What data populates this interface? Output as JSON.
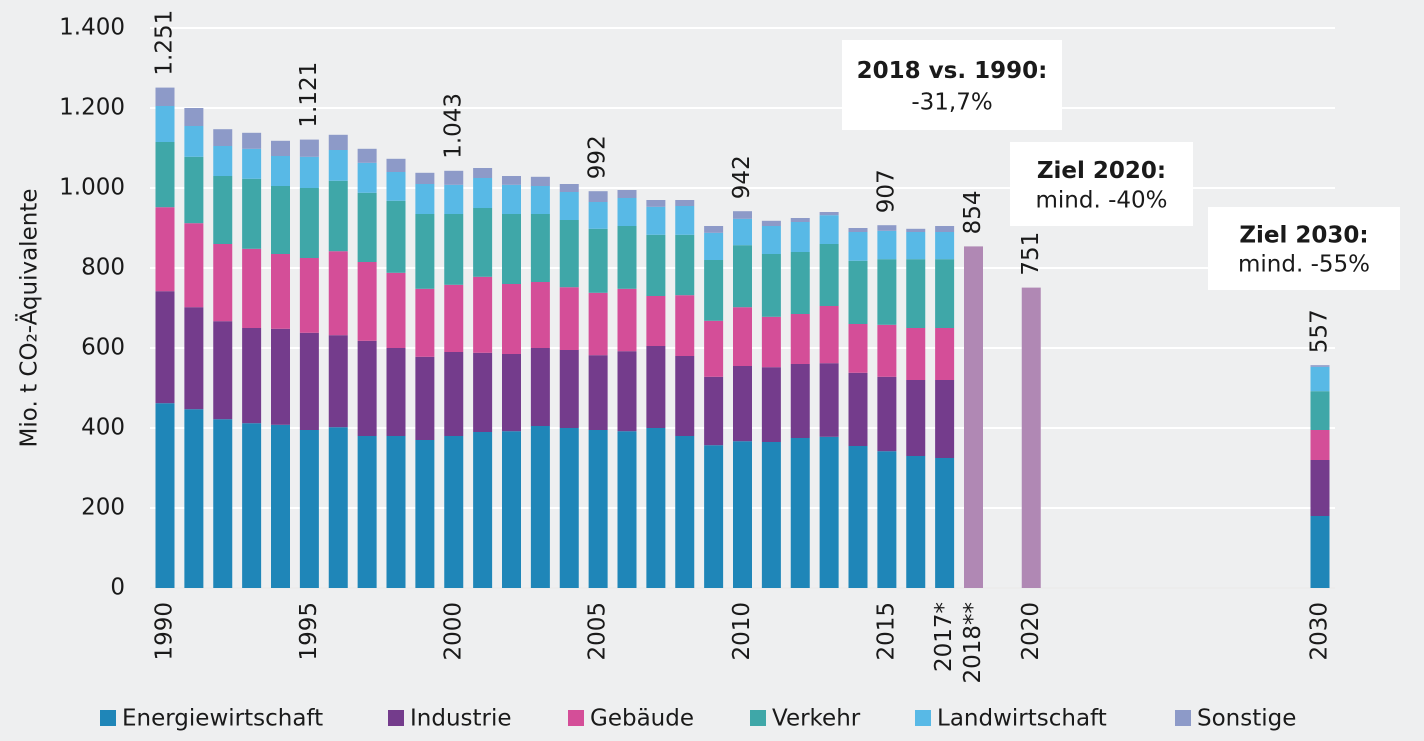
{
  "chart_data": {
    "type": "stacked_bar",
    "ylabel": "Mio. t CO₂-Äquivalente",
    "categories": [
      "1990",
      null,
      null,
      null,
      null,
      "1995",
      null,
      null,
      null,
      null,
      "2000",
      null,
      null,
      null,
      null,
      "2005",
      null,
      null,
      null,
      null,
      "2010",
      null,
      null,
      null,
      null,
      "2015",
      null,
      "2017*",
      "2018**",
      null,
      "2020",
      null,
      null,
      null,
      null,
      null,
      null,
      null,
      null,
      null,
      "2030"
    ],
    "series": [
      {
        "name": "Energiewirtschaft",
        "color": "#1f86b8",
        "values": [
          462,
          447,
          422,
          412,
          408,
          395,
          402,
          380,
          380,
          370,
          380,
          390,
          392,
          405,
          400,
          395,
          392,
          400,
          380,
          357,
          367,
          365,
          375,
          378,
          355,
          342,
          330,
          325,
          null,
          null,
          null,
          null,
          null,
          null,
          null,
          null,
          null,
          null,
          null,
          null,
          180
        ]
      },
      {
        "name": "Industrie",
        "color": "#743c8c",
        "values": [
          280,
          255,
          245,
          238,
          240,
          243,
          230,
          238,
          220,
          208,
          210,
          198,
          193,
          195,
          195,
          187,
          200,
          205,
          200,
          171,
          188,
          187,
          185,
          184,
          183,
          186,
          190,
          195,
          null,
          null,
          null,
          null,
          null,
          null,
          null,
          null,
          null,
          null,
          null,
          null,
          140
        ]
      },
      {
        "name": "Gebäude",
        "color": "#d44e98",
        "values": [
          210,
          210,
          193,
          198,
          187,
          187,
          210,
          197,
          188,
          170,
          168,
          190,
          175,
          165,
          157,
          156,
          156,
          125,
          152,
          140,
          147,
          126,
          125,
          143,
          122,
          130,
          130,
          130,
          null,
          null,
          null,
          null,
          null,
          null,
          null,
          null,
          null,
          null,
          null,
          null,
          75
        ]
      },
      {
        "name": "Verkehr",
        "color": "#3fa7a8",
        "values": [
          163,
          166,
          170,
          175,
          170,
          175,
          176,
          173,
          180,
          187,
          177,
          172,
          175,
          170,
          168,
          160,
          157,
          153,
          151,
          152,
          155,
          157,
          155,
          155,
          158,
          164,
          172,
          172,
          null,
          null,
          null,
          null,
          null,
          null,
          null,
          null,
          null,
          null,
          null,
          null,
          97
        ]
      },
      {
        "name": "Landwirtschaft",
        "color": "#58b9e6",
        "values": [
          90,
          77,
          75,
          75,
          75,
          78,
          77,
          75,
          72,
          75,
          73,
          75,
          73,
          70,
          70,
          67,
          70,
          70,
          72,
          68,
          66,
          70,
          75,
          72,
          72,
          71,
          68,
          68,
          null,
          null,
          null,
          null,
          null,
          null,
          null,
          null,
          null,
          null,
          null,
          null,
          61
        ]
      },
      {
        "name": "Sonstige",
        "color": "#8d9ac8",
        "values": [
          46,
          45,
          42,
          40,
          38,
          43,
          38,
          35,
          33,
          28,
          35,
          25,
          22,
          23,
          20,
          27,
          20,
          17,
          15,
          17,
          19,
          13,
          10,
          8,
          10,
          14,
          8,
          15,
          null,
          null,
          null,
          null,
          null,
          null,
          null,
          null,
          null,
          null,
          null,
          null,
          4
        ]
      },
      {
        "color": "#b088b4",
        "values": [
          null,
          null,
          null,
          null,
          null,
          null,
          null,
          null,
          null,
          null,
          null,
          null,
          null,
          null,
          null,
          null,
          null,
          null,
          null,
          null,
          null,
          null,
          null,
          null,
          null,
          null,
          null,
          null,
          854,
          null,
          751,
          null,
          null,
          null,
          null,
          null,
          null,
          null,
          null,
          null,
          null
        ]
      }
    ],
    "totals": {
      "values": [
        1251,
        null,
        null,
        null,
        null,
        1121,
        null,
        null,
        null,
        null,
        1043,
        null,
        null,
        null,
        null,
        992,
        null,
        null,
        null,
        null,
        942,
        null,
        null,
        null,
        null,
        907,
        null,
        null,
        854,
        null,
        751,
        null,
        null,
        null,
        null,
        null,
        null,
        null,
        null,
        null,
        557
      ],
      "value_labels": [
        "1.251",
        null,
        null,
        null,
        null,
        "1.121",
        null,
        null,
        null,
        null,
        "1.043",
        null,
        null,
        null,
        null,
        null,
        null,
        null,
        null,
        null,
        null,
        null,
        null,
        null,
        null,
        null,
        null,
        null,
        null,
        null,
        null,
        null,
        null,
        null,
        null,
        null,
        null,
        null,
        null,
        null,
        null
      ]
    },
    "ylim": [
      0,
      1400
    ],
    "yticks": [
      0,
      200,
      400,
      600,
      800,
      {
        "value": 1000,
        "label": "1.000"
      },
      {
        "value": 1200,
        "label": "1.200"
      },
      {
        "value": 1400,
        "label": "1.400"
      }
    ],
    "grid": true,
    "annotations": [
      {
        "title": "2018 vs. 1990:",
        "text": "-31,7%"
      },
      {
        "title": "Ziel 2020:",
        "text": "mind. -40%"
      },
      {
        "title": "Ziel 2030:",
        "text": "mind. -55%"
      }
    ]
  }
}
